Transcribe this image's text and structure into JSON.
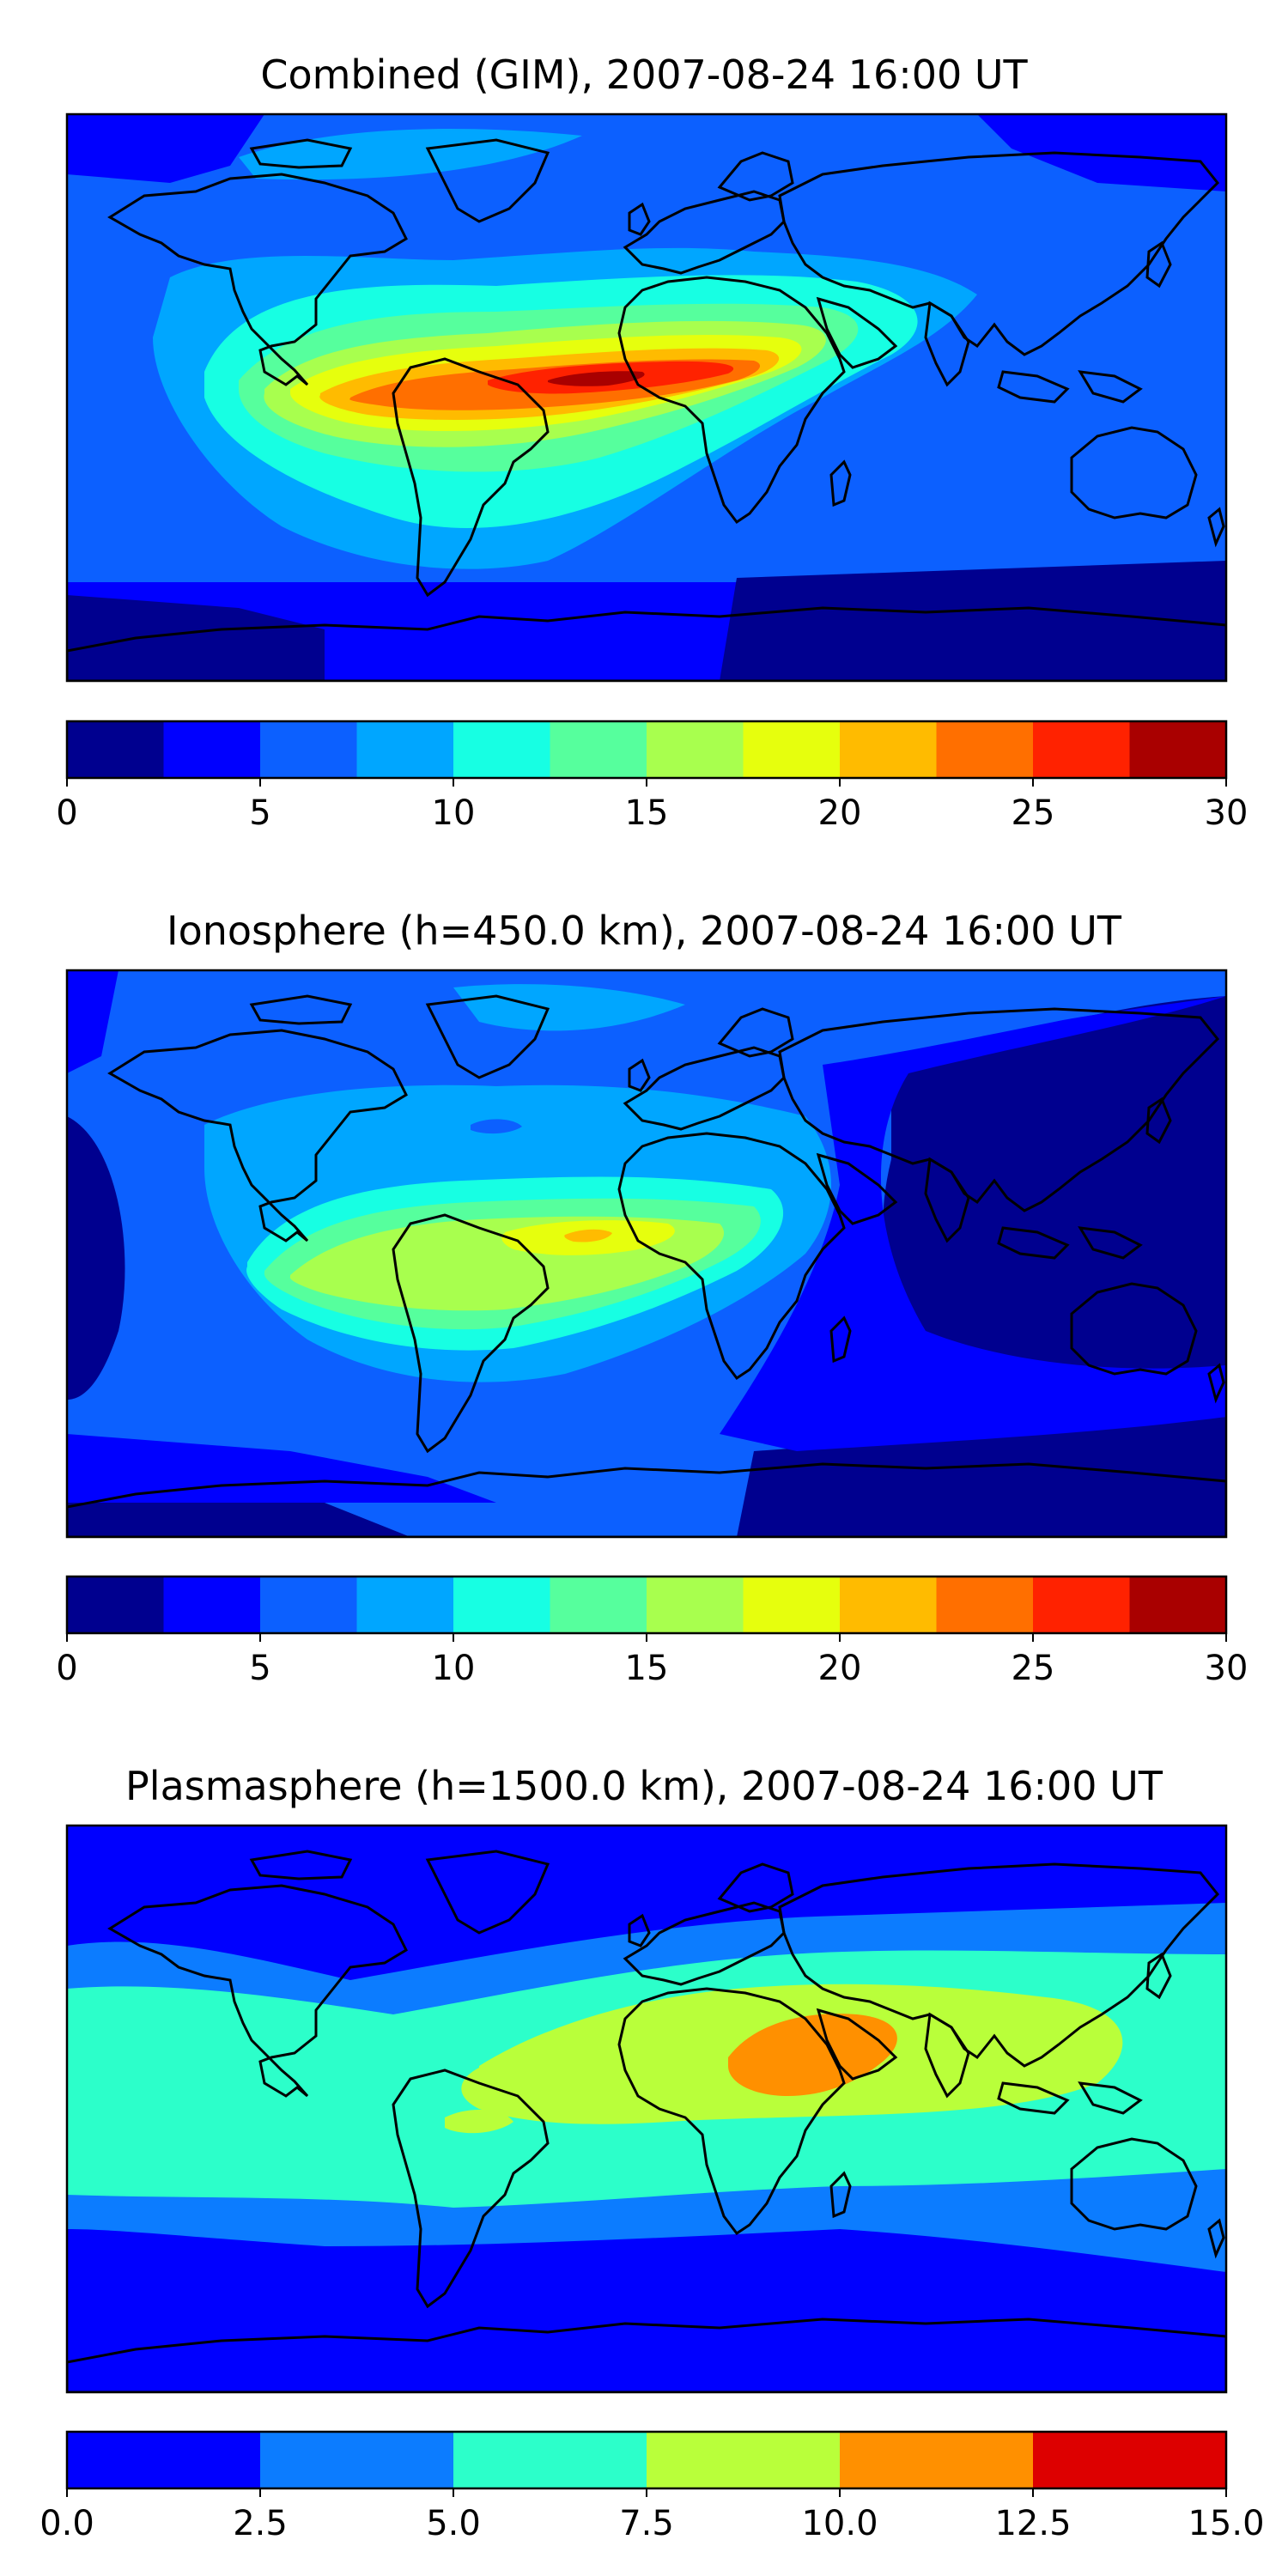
{
  "panels": [
    {
      "title": "Combined (GIM), 2007-08-24 16:00 UT",
      "colorbar": {
        "min": 0,
        "max": 30,
        "levels": [
          0,
          2.5,
          5,
          7.5,
          10,
          12.5,
          15,
          17.5,
          20,
          22.5,
          25,
          27.5,
          30
        ],
        "colors": [
          "#00008f",
          "#0000ff",
          "#0c60ff",
          "#00a6ff",
          "#17ffe3",
          "#56ff9d",
          "#a8ff4e",
          "#e6ff0d",
          "#ffbb00",
          "#ff6f00",
          "#ff2200",
          "#a90000"
        ],
        "ticks": [
          "0",
          "5",
          "10",
          "15",
          "20",
          "25",
          "30"
        ],
        "tick_values": [
          0,
          5,
          10,
          15,
          20,
          25,
          30
        ]
      },
      "map": {
        "background": "#0c60ff",
        "max_region": "Equatorial Africa / South Atlantic",
        "max_level_value": 27.5
      }
    },
    {
      "title": "Ionosphere  (h=450.0 km), 2007-08-24 16:00 UT",
      "colorbar": {
        "min": 0,
        "max": 30,
        "levels": [
          0,
          2.5,
          5,
          7.5,
          10,
          12.5,
          15,
          17.5,
          20,
          22.5,
          25,
          27.5,
          30
        ],
        "colors": [
          "#00008f",
          "#0000ff",
          "#0c60ff",
          "#00a6ff",
          "#17ffe3",
          "#56ff9d",
          "#a8ff4e",
          "#e6ff0d",
          "#ffbb00",
          "#ff6f00",
          "#ff2200",
          "#a90000"
        ],
        "ticks": [
          "0",
          "5",
          "10",
          "15",
          "20",
          "25",
          "30"
        ],
        "tick_values": [
          0,
          5,
          10,
          15,
          20,
          25,
          30
        ]
      },
      "map": {
        "background": "#0c60ff",
        "max_region": "West Africa / Gulf of Guinea",
        "max_level_value": 20
      }
    },
    {
      "title": "Plasmasphere (h=1500.0 km), 2007-08-24 16:00 UT",
      "colorbar": {
        "min": 0,
        "max": 15,
        "levels": [
          0,
          2.5,
          5,
          7.5,
          10,
          12.5,
          15
        ],
        "colors": [
          "#0000ff",
          "#0c7cff",
          "#2cffca",
          "#b9ff3a",
          "#ff9000",
          "#dd0000"
        ],
        "ticks": [
          "0.0",
          "2.5",
          "5.0",
          "7.5",
          "10.0",
          "12.5",
          "15.0"
        ],
        "tick_values": [
          0,
          2.5,
          5,
          7.5,
          10,
          12.5,
          15
        ]
      },
      "map": {
        "background": "#0000ff",
        "max_region": "Arabian Peninsula / Horn of Africa",
        "max_level_value": 10
      }
    }
  ]
}
